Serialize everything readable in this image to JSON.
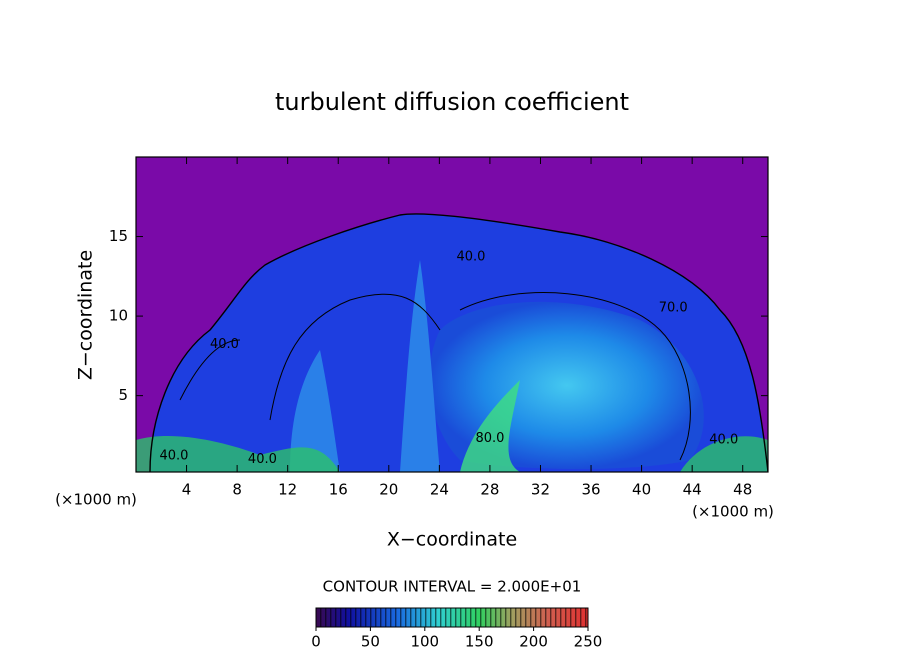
{
  "chart_data": {
    "type": "contour",
    "title": "turbulent diffusion coefficient",
    "xlabel": "X−coordinate",
    "ylabel": "Z−coordinate",
    "xunit_left": "(×1000 m)",
    "xunit_right": "(×1000 m)",
    "xlim": [
      0,
      50
    ],
    "xticks": [
      4,
      8,
      12,
      16,
      20,
      24,
      28,
      32,
      36,
      40,
      44,
      48
    ],
    "ylim": [
      0.2,
      20
    ],
    "yticks": [
      5,
      10,
      15
    ],
    "contour_labels": [
      {
        "text": "40.0",
        "x": 26.5,
        "y": 13.7
      },
      {
        "text": "40.0",
        "x": 7,
        "y": 8.2
      },
      {
        "text": "70.0",
        "x": 42.5,
        "y": 10.5
      },
      {
        "text": "80.0",
        "x": 28,
        "y": 2.3
      },
      {
        "text": "40.0",
        "x": 3,
        "y": 1.2
      },
      {
        "text": "40.0",
        "x": 10,
        "y": 1.0
      },
      {
        "text": "40.0",
        "x": 46.5,
        "y": 2.2
      }
    ],
    "contour_interval": "CONTOUR INTERVAL = 2.000E+01",
    "colorbar": {
      "lim": [
        0,
        250
      ],
      "ticks": [
        0,
        50,
        100,
        150,
        200,
        250
      ]
    }
  }
}
